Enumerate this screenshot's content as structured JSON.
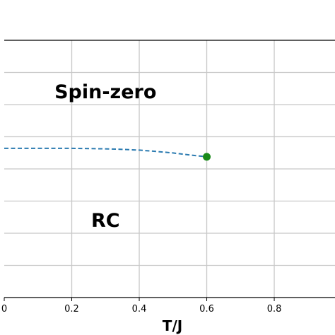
{
  "chart_data": {
    "type": "line",
    "xlabel": "T/J",
    "ylabel": "",
    "title": "",
    "xlim": [
      0.0,
      0.98
    ],
    "ylim": [
      0.0,
      1.0
    ],
    "x_ticks": [
      0.0,
      0.2,
      0.4,
      0.6,
      0.8
    ],
    "x_tick_labels": [
      "0",
      "0.2",
      "0.4",
      "0.6",
      "0.8"
    ],
    "y_gridlines": [
      0.125,
      0.25,
      0.375,
      0.5,
      0.625,
      0.75,
      0.875
    ],
    "grid": true,
    "series": [
      {
        "style": "dashed",
        "color": "#2a7ab0",
        "x": [
          0.0,
          0.1,
          0.2,
          0.3,
          0.35,
          0.4,
          0.45,
          0.5,
          0.55,
          0.6
        ],
        "y": [
          0.58,
          0.58,
          0.58,
          0.578,
          0.576,
          0.573,
          0.568,
          0.562,
          0.554,
          0.547
        ]
      }
    ],
    "points": [
      {
        "x": 0.6,
        "y": 0.547,
        "color": "#1a8a1a"
      }
    ],
    "annotations": [
      {
        "text": "Spin-zero",
        "x": 0.3,
        "y": 0.775
      },
      {
        "text": "RC",
        "x": 0.3,
        "y": 0.275
      }
    ]
  }
}
